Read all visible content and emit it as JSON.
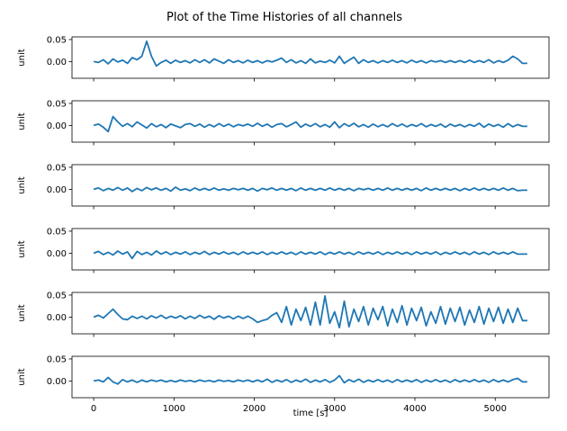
{
  "chart_data": {
    "type": "line",
    "title": "Plot of the Time Histories of all channels",
    "xlabel": "time [s]",
    "ylabel": "unit",
    "xlim": [
      -270,
      5670
    ],
    "ylim": [
      -0.038,
      0.056
    ],
    "x_ticks": [
      0,
      1000,
      2000,
      3000,
      4000,
      5000
    ],
    "x_tick_labels": [
      "0",
      "1000",
      "2000",
      "3000",
      "4000",
      "5000"
    ],
    "y_ticks": [
      0.0,
      0.05
    ],
    "y_tick_labels": [
      "0.00",
      "0.05"
    ],
    "series_color": "#1f77b4",
    "grid": false,
    "legend": false,
    "x_step": 60,
    "panels": [
      {
        "values": [
          0.0,
          -0.002,
          0.004,
          -0.005,
          0.006,
          -0.001,
          0.003,
          -0.004,
          0.009,
          0.004,
          0.012,
          0.046,
          0.012,
          -0.01,
          -0.002,
          0.003,
          -0.004,
          0.003,
          -0.002,
          0.002,
          -0.003,
          0.004,
          -0.002,
          0.004,
          -0.003,
          0.006,
          0.001,
          -0.004,
          0.004,
          -0.002,
          0.002,
          -0.003,
          0.003,
          -0.002,
          0.002,
          -0.003,
          0.002,
          -0.001,
          0.003,
          0.008,
          -0.002,
          0.004,
          -0.003,
          0.002,
          -0.004,
          0.006,
          -0.003,
          0.001,
          -0.002,
          0.003,
          -0.003,
          0.012,
          -0.004,
          0.003,
          0.01,
          -0.004,
          0.004,
          -0.002,
          0.002,
          -0.003,
          0.002,
          -0.002,
          0.003,
          -0.002,
          0.002,
          -0.003,
          0.003,
          -0.002,
          0.002,
          -0.003,
          0.002,
          -0.001,
          0.002,
          -0.002,
          0.002,
          -0.002,
          0.002,
          -0.002,
          0.003,
          -0.002,
          0.002,
          -0.002,
          0.004,
          -0.003,
          0.002,
          -0.002,
          0.003,
          0.012,
          0.006,
          -0.004,
          -0.004
        ]
      },
      {
        "values": [
          0.0,
          0.003,
          -0.004,
          -0.014,
          0.02,
          0.008,
          -0.002,
          0.004,
          -0.003,
          0.008,
          0.001,
          -0.006,
          0.004,
          -0.003,
          0.002,
          -0.005,
          0.003,
          -0.001,
          -0.005,
          0.002,
          0.004,
          -0.002,
          0.003,
          -0.004,
          0.002,
          -0.003,
          0.004,
          -0.002,
          0.003,
          -0.003,
          0.002,
          -0.001,
          0.003,
          -0.002,
          0.005,
          -0.002,
          0.003,
          -0.004,
          0.002,
          0.004,
          -0.003,
          0.002,
          0.008,
          -0.004,
          0.003,
          -0.002,
          0.004,
          -0.003,
          0.002,
          -0.004,
          0.008,
          -0.005,
          0.004,
          -0.002,
          0.005,
          -0.003,
          0.002,
          -0.004,
          0.003,
          -0.003,
          0.002,
          -0.003,
          0.004,
          -0.002,
          0.003,
          -0.003,
          0.002,
          -0.002,
          0.004,
          -0.003,
          0.002,
          -0.002,
          0.003,
          -0.004,
          0.003,
          -0.002,
          0.002,
          -0.003,
          0.002,
          -0.002,
          0.005,
          -0.004,
          0.003,
          -0.002,
          0.002,
          -0.004,
          0.004,
          -0.003,
          0.002,
          -0.002,
          -0.002
        ]
      },
      {
        "values": [
          0.0,
          0.003,
          -0.003,
          0.002,
          -0.002,
          0.004,
          -0.002,
          0.003,
          -0.005,
          0.002,
          -0.003,
          0.004,
          -0.001,
          0.003,
          -0.002,
          0.002,
          -0.004,
          0.005,
          -0.002,
          0.001,
          -0.003,
          0.003,
          -0.002,
          0.002,
          -0.002,
          0.003,
          -0.002,
          0.001,
          -0.002,
          0.002,
          -0.001,
          0.002,
          -0.002,
          0.002,
          -0.004,
          0.002,
          -0.001,
          0.003,
          -0.002,
          0.002,
          -0.002,
          0.002,
          -0.003,
          0.003,
          -0.002,
          0.002,
          -0.002,
          0.002,
          -0.002,
          0.003,
          -0.002,
          0.002,
          -0.002,
          0.002,
          -0.003,
          0.002,
          -0.001,
          0.002,
          -0.002,
          0.002,
          -0.002,
          0.003,
          -0.002,
          0.002,
          -0.002,
          0.002,
          -0.002,
          0.002,
          -0.003,
          0.003,
          -0.002,
          0.002,
          -0.002,
          0.002,
          -0.002,
          0.002,
          -0.003,
          0.002,
          -0.002,
          0.003,
          -0.002,
          0.002,
          -0.002,
          0.002,
          -0.002,
          0.003,
          -0.002,
          0.002,
          -0.003,
          -0.002,
          -0.002
        ]
      },
      {
        "values": [
          0.0,
          0.004,
          -0.003,
          0.002,
          -0.004,
          0.005,
          -0.002,
          0.003,
          -0.012,
          0.004,
          -0.003,
          0.002,
          -0.004,
          0.005,
          -0.002,
          0.003,
          -0.003,
          0.002,
          -0.002,
          0.003,
          -0.003,
          0.002,
          -0.002,
          0.004,
          -0.003,
          0.002,
          -0.002,
          0.003,
          -0.002,
          0.002,
          -0.003,
          0.003,
          -0.002,
          0.002,
          -0.002,
          0.003,
          -0.003,
          0.002,
          -0.002,
          0.003,
          -0.002,
          0.002,
          -0.003,
          0.003,
          -0.002,
          0.002,
          -0.002,
          0.003,
          -0.003,
          0.002,
          -0.002,
          0.003,
          -0.002,
          0.002,
          -0.003,
          0.003,
          -0.002,
          0.002,
          -0.002,
          0.003,
          -0.003,
          0.002,
          -0.002,
          0.003,
          -0.002,
          0.002,
          -0.003,
          0.003,
          -0.002,
          0.002,
          -0.002,
          0.003,
          -0.003,
          0.002,
          -0.002,
          0.003,
          -0.002,
          0.002,
          -0.003,
          0.003,
          -0.002,
          0.002,
          -0.003,
          0.003,
          -0.002,
          0.002,
          -0.002,
          0.003,
          -0.002,
          -0.002,
          -0.002
        ]
      },
      {
        "values": [
          0.0,
          0.004,
          -0.002,
          0.008,
          0.018,
          0.006,
          -0.004,
          -0.006,
          0.002,
          -0.003,
          0.002,
          -0.004,
          0.003,
          -0.002,
          0.004,
          -0.003,
          0.002,
          -0.002,
          0.003,
          -0.004,
          0.002,
          -0.003,
          0.004,
          -0.002,
          0.002,
          -0.005,
          0.003,
          -0.002,
          0.002,
          -0.004,
          0.002,
          -0.003,
          0.002,
          -0.004,
          -0.012,
          -0.008,
          -0.005,
          0.004,
          0.01,
          -0.012,
          0.024,
          -0.018,
          0.018,
          -0.008,
          0.022,
          -0.018,
          0.034,
          -0.018,
          0.048,
          -0.014,
          0.012,
          -0.024,
          0.036,
          -0.022,
          0.018,
          -0.01,
          0.024,
          -0.018,
          0.02,
          -0.006,
          0.024,
          -0.02,
          0.018,
          -0.012,
          0.026,
          -0.018,
          0.02,
          -0.008,
          0.022,
          -0.02,
          0.012,
          -0.014,
          0.024,
          -0.016,
          0.02,
          -0.01,
          0.022,
          -0.018,
          0.016,
          -0.012,
          0.024,
          -0.016,
          0.02,
          -0.01,
          0.022,
          -0.014,
          0.018,
          -0.012,
          0.02,
          -0.008,
          -0.008
        ]
      },
      {
        "values": [
          0.0,
          0.002,
          -0.002,
          0.008,
          -0.002,
          -0.007,
          0.003,
          -0.002,
          0.002,
          -0.003,
          0.002,
          -0.002,
          0.002,
          -0.001,
          0.002,
          -0.002,
          0.001,
          -0.002,
          0.002,
          -0.001,
          0.001,
          -0.002,
          0.002,
          -0.001,
          0.001,
          -0.002,
          0.002,
          -0.001,
          0.001,
          -0.002,
          0.002,
          -0.001,
          0.002,
          -0.002,
          0.002,
          -0.002,
          0.004,
          -0.003,
          0.002,
          -0.002,
          0.003,
          -0.003,
          0.002,
          -0.002,
          0.004,
          -0.003,
          0.002,
          -0.002,
          0.003,
          -0.003,
          0.002,
          0.012,
          -0.004,
          0.003,
          -0.002,
          0.004,
          -0.003,
          0.002,
          -0.002,
          0.003,
          -0.002,
          0.002,
          -0.003,
          0.003,
          -0.002,
          0.002,
          -0.002,
          0.003,
          -0.003,
          0.002,
          -0.002,
          0.003,
          -0.002,
          0.002,
          -0.003,
          0.003,
          -0.002,
          0.002,
          -0.002,
          0.003,
          -0.002,
          0.002,
          -0.003,
          0.003,
          -0.002,
          0.002,
          -0.002,
          0.003,
          0.006,
          -0.002,
          -0.002
        ]
      }
    ]
  }
}
